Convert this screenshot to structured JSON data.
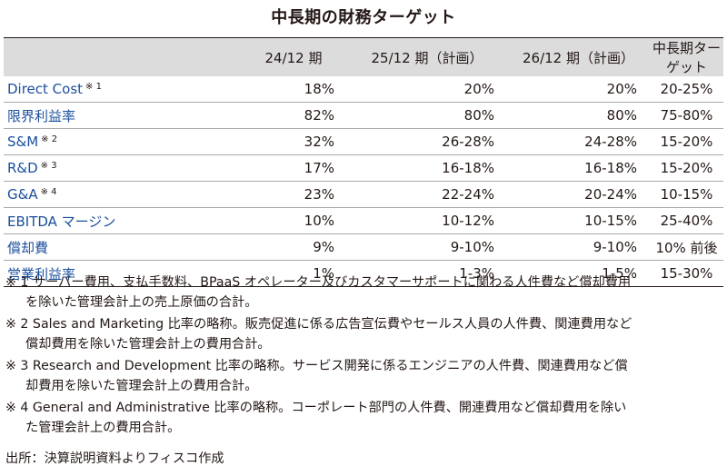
{
  "title": "中長期の財務ターゲット",
  "columns": [
    "",
    "24/12 期",
    "25/12 期（計画）",
    "26/12 期（計画）",
    "中長期ターゲット"
  ],
  "rows": [
    {
      "label": "Direct Cost",
      "mark": "※ 1",
      "v": [
        "18%",
        "20%",
        "20%",
        "20-25%"
      ]
    },
    {
      "label": "限界利益率",
      "mark": "",
      "v": [
        "82%",
        "80%",
        "80%",
        "75-80%"
      ]
    },
    {
      "label": "S&M",
      "mark": "※ 2",
      "v": [
        "32%",
        "26-28%",
        "24-28%",
        "15-20%"
      ]
    },
    {
      "label": "R&D",
      "mark": "※ 3",
      "v": [
        "17%",
        "16-18%",
        "16-18%",
        "15-20%"
      ]
    },
    {
      "label": "G&A",
      "mark": "※ 4",
      "v": [
        "23%",
        "22-24%",
        "20-24%",
        "10-15%"
      ]
    },
    {
      "label": "EBITDA マージン",
      "mark": "",
      "v": [
        "10%",
        "10-12%",
        "10-15%",
        "25-40%"
      ]
    },
    {
      "label": "償却費",
      "mark": "",
      "v": [
        "9%",
        "9-10%",
        "9-10%",
        "10% 前後"
      ]
    },
    {
      "label": "営業利益率",
      "mark": "",
      "v": [
        "1%",
        "1-3%",
        "1-5%",
        "15-30%"
      ]
    }
  ],
  "notes": [
    [
      "※ 1 サーバー費用、支払手数料、BPaaS オペレーター及びカスタマーサポートに関わる人件費など償却費用",
      "を除いた管理会計上の売上原価の合計。"
    ],
    [
      "※ 2 Sales and Marketing 比率の略称。販売促進に係る広告宣伝費やセールス人員の人件費、関連費用など",
      "償却費用を除いた管理会計上の費用合計。"
    ],
    [
      "※ 3 Research and Development 比率の略称。サービス開発に係るエンジニアの人件費、関連費用など償",
      "却費用を除いた管理会計上の費用合計。"
    ],
    [
      "※ 4 General and Administrative 比率の略称。コーポレート部門の人件費、開連費用など償却費用を除い",
      "た管理会計上の費用合計。"
    ]
  ],
  "source": "出所：決算説明資料よりフィスコ作成"
}
